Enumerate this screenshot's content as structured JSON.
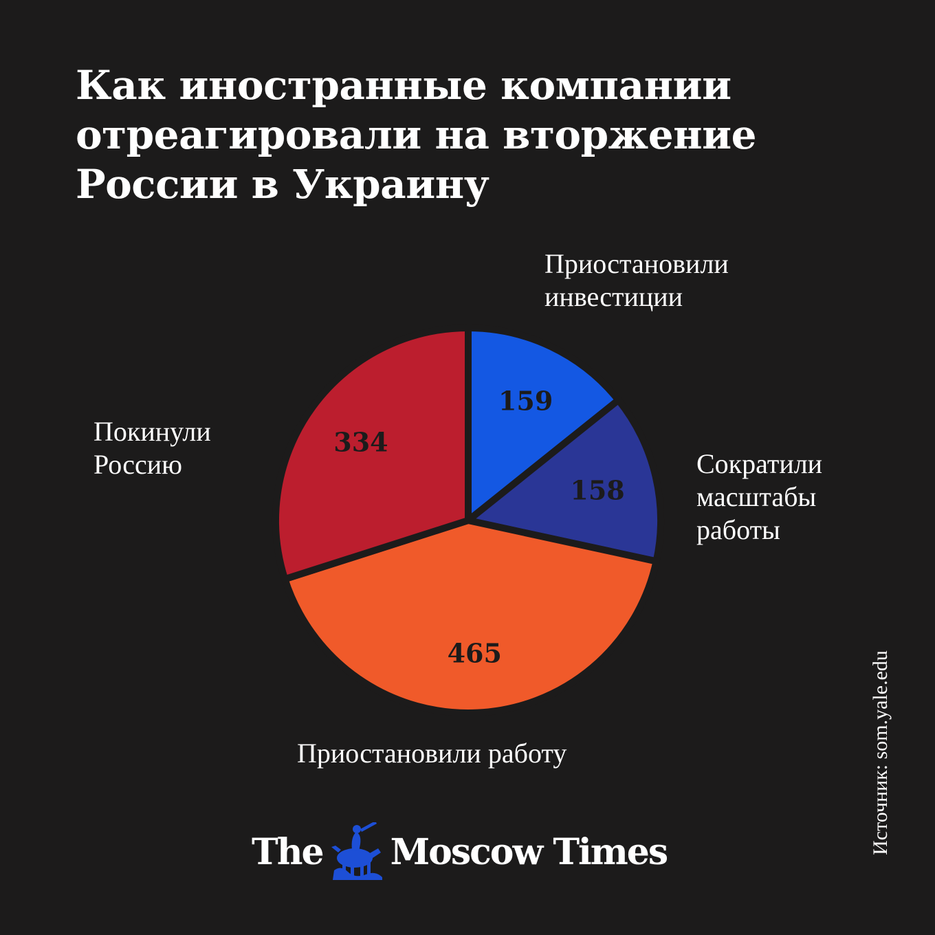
{
  "title_lines": [
    "Как иностранные компании",
    "отреагировали на вторжение",
    "России в Украину"
  ],
  "chart_data": {
    "type": "pie",
    "title": "Как иностранные компании отреагировали на вторжение России в Украину",
    "slices": [
      {
        "label": "Приостановили инвестиции",
        "value": 159,
        "color": "#1458e3"
      },
      {
        "label": "Сократили масштабы работы",
        "value": 158,
        "color": "#2a3696"
      },
      {
        "label": "Приостановили работу",
        "value": 465,
        "color": "#f05a2a"
      },
      {
        "label": "Покинули Россию",
        "value": 334,
        "color": "#bc1e2e"
      }
    ],
    "start": "12 o'clock",
    "direction": "clockwise",
    "legend": "labels outside slices"
  },
  "labels": {
    "investments": [
      "Приостановили",
      "инвестиции"
    ],
    "scaled_down": [
      "Сократили",
      "масштабы",
      "работы"
    ],
    "suspended": [
      "Приостановили работу"
    ],
    "left": [
      "Покинули",
      "Россию"
    ]
  },
  "source": "Источник: som.yale.edu",
  "logo": {
    "left_text": "The",
    "right_text": "Moscow Times",
    "emblem": "st-george-emblem",
    "emblem_color": "#1d4fd6"
  }
}
